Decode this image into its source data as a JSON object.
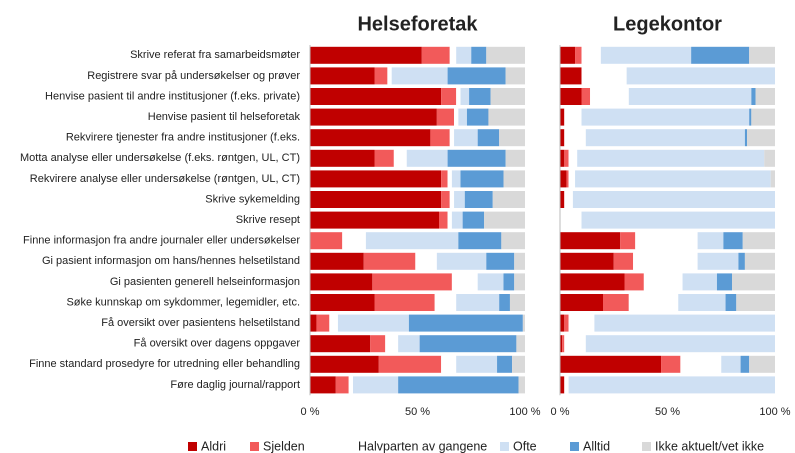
{
  "chart_data": [
    {
      "type": "stacked-barh",
      "title": "Helseforetak",
      "categories": [
        "Skrive referat fra samarbeidsmøter",
        "Registrere svar på undersøkelser og prøver",
        "Henvise pasient til andre institusjoner (f.eks. private)",
        "Henvise pasient til helseforetak",
        "Rekvirere tjenester fra andre institusjoner (f.eks.",
        "Motta analyse eller undersøkelse (f.eks. røntgen, UL, CT)",
        "Rekvirere analyse eller undersøkelse (røntgen, UL, CT)",
        "Skrive sykemelding",
        "Skrive resept",
        "Finne informasjon fra andre journaler eller undersøkelser",
        "Gi pasient informasjon om hans/hennes helsetilstand",
        "Gi pasienten generell helseinformasjon",
        "Søke kunnskap om sykdommer, legemidler, etc.",
        "Få oversikt over pasientens helsetilstand",
        "Få oversikt over dagens oppgaver",
        "Finne standard prosedyre for utredning eller behandling",
        "Føre daglig journal/rapport"
      ],
      "xlim": [
        0,
        100
      ],
      "xticks": [
        {
          "value": 0,
          "label": "0 %"
        },
        {
          "value": 50,
          "label": "50 %"
        },
        {
          "value": 100,
          "label": "100 %"
        }
      ],
      "series": [
        {
          "name": "Aldri",
          "color": "#c00000",
          "values": [
            52,
            30,
            61,
            59,
            56,
            30,
            61,
            61,
            60,
            0,
            25,
            29,
            30,
            3,
            28,
            32,
            12
          ]
        },
        {
          "name": "Sjelden",
          "color": "#f25a5a",
          "values": [
            13,
            6,
            7,
            8,
            9,
            9,
            3,
            4,
            4,
            15,
            24,
            37,
            28,
            6,
            7,
            29,
            6
          ]
        },
        {
          "name": "Halvparten av gangene",
          "color": "#ffffff",
          "values": [
            3,
            2,
            2,
            2,
            2,
            6,
            2,
            2,
            2,
            11,
            10,
            12,
            10,
            4,
            6,
            7,
            2
          ]
        },
        {
          "name": "Ofte",
          "color": "#cfe0f3",
          "values": [
            7,
            26,
            4,
            4,
            11,
            19,
            4,
            5,
            5,
            43,
            23,
            12,
            20,
            33,
            10,
            19,
            21
          ]
        },
        {
          "name": "Alltid",
          "color": "#5b9bd5",
          "values": [
            7,
            27,
            10,
            10,
            10,
            27,
            20,
            13,
            10,
            20,
            13,
            5,
            5,
            53,
            45,
            7,
            56
          ]
        },
        {
          "name": "Ikke aktuelt/vet ikke",
          "color": "#d9d9d9",
          "values": [
            18,
            9,
            16,
            17,
            12,
            9,
            10,
            15,
            19,
            11,
            5,
            5,
            7,
            1,
            4,
            6,
            3
          ]
        }
      ]
    },
    {
      "type": "stacked-barh",
      "title": "Legekontor",
      "xlim": [
        0,
        100
      ],
      "xticks": [
        {
          "value": 0,
          "label": "0 %"
        },
        {
          "value": 50,
          "label": "50 %"
        },
        {
          "value": 100,
          "label": "100 %"
        }
      ],
      "series": [
        {
          "color": "#c00000",
          "values": [
            7,
            10,
            10,
            2,
            2,
            2,
            3,
            2,
            0,
            28,
            25,
            30,
            20,
            2,
            1,
            47,
            2
          ]
        },
        {
          "color": "#f25a5a",
          "values": [
            3,
            0,
            4,
            0,
            0,
            2,
            1,
            0,
            0,
            7,
            9,
            9,
            12,
            2,
            1,
            9,
            0
          ]
        },
        {
          "color": "#ffffff",
          "values": [
            9,
            21,
            18,
            8,
            10,
            4,
            3,
            4,
            10,
            29,
            30,
            18,
            23,
            12,
            10,
            19,
            2
          ]
        },
        {
          "color": "#cfe0f3",
          "values": [
            42,
            69,
            57,
            78,
            74,
            87,
            91,
            94,
            90,
            12,
            19,
            16,
            22,
            84,
            88,
            9,
            96
          ]
        },
        {
          "color": "#5b9bd5",
          "values": [
            27,
            0,
            2,
            1,
            1,
            0,
            0,
            0,
            0,
            9,
            3,
            7,
            5,
            0,
            0,
            4,
            0
          ]
        },
        {
          "color": "#d9d9d9",
          "values": [
            12,
            0,
            9,
            11,
            13,
            5,
            2,
            0,
            0,
            15,
            14,
            20,
            18,
            0,
            0,
            12,
            0
          ]
        }
      ]
    }
  ]
}
